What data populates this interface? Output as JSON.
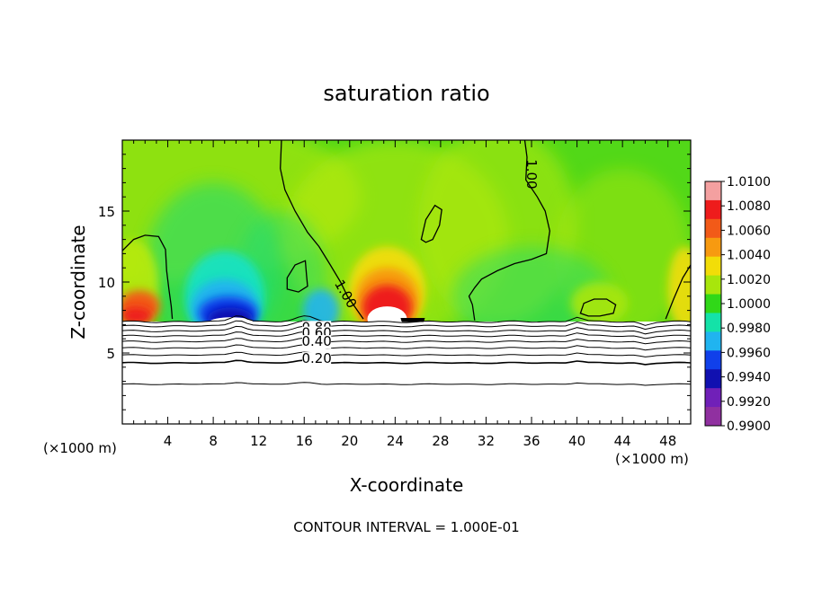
{
  "chart_data": {
    "type": "heatmap",
    "title": "saturation ratio",
    "xlabel": "X-coordinate",
    "ylabel": "Z-coordinate",
    "x_unit_left": "(×1000 m)",
    "x_unit_right": "(×1000 m)",
    "xlim": [
      0,
      50
    ],
    "ylim": [
      0,
      20
    ],
    "x_ticks": [
      4,
      8,
      12,
      16,
      20,
      24,
      28,
      32,
      36,
      40,
      44,
      48
    ],
    "y_ticks": [
      5,
      10,
      15
    ],
    "footer": "CONTOUR INTERVAL = 1.000E-01",
    "colorbar": {
      "labels": [
        "1.0100",
        "1.0080",
        "1.0060",
        "1.0040",
        "1.0020",
        "1.0000",
        "0.9980",
        "0.9960",
        "0.9940",
        "0.9920",
        "0.9900"
      ],
      "colors": [
        "#f4a0a0",
        "#ee1c1c",
        "#f25a18",
        "#f79a10",
        "#f2dd08",
        "#a8e60c",
        "#30d818",
        "#14e2a8",
        "#20b4f0",
        "#1040ea",
        "#1010b0",
        "#7020b8",
        "#9030a0"
      ]
    },
    "contour_labels": [
      {
        "text": "1.00",
        "x": 35.6,
        "y": 17.6
      },
      {
        "text": "1.00",
        "x": 19.3,
        "y": 9.0
      },
      {
        "text": "0.80",
        "x": 17.1,
        "y": 6.5
      },
      {
        "text": "0.60",
        "x": 17.1,
        "y": 6.1
      },
      {
        "text": "0.40",
        "x": 17.1,
        "y": 5.5
      },
      {
        "text": "0.20",
        "x": 17.1,
        "y": 4.3
      }
    ]
  }
}
